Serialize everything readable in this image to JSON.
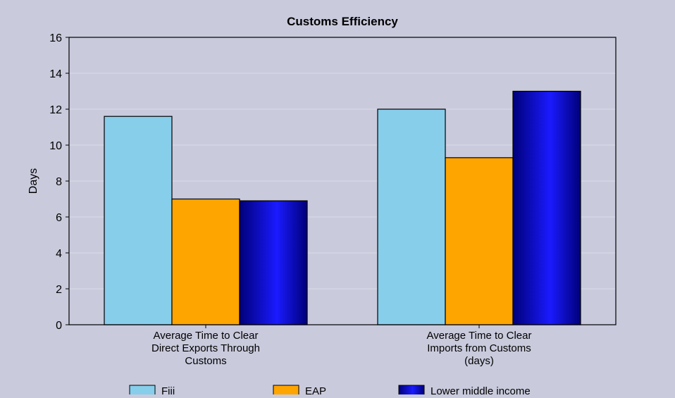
{
  "chart_data": {
    "type": "bar",
    "title": "Customs Efficiency",
    "xlabel": "",
    "ylabel": "Days",
    "ylim": [
      0,
      16
    ],
    "yticks": [
      0,
      2,
      4,
      6,
      8,
      10,
      12,
      14,
      16
    ],
    "grid": true,
    "legend_position": "bottom",
    "categories": [
      [
        "Average Time to Clear",
        "Direct Exports Through",
        "Customs"
      ],
      [
        "Average Time to Clear",
        "Imports from Customs",
        "(days)"
      ]
    ],
    "series": [
      {
        "name": "Fiji",
        "values": [
          11.6,
          12.0
        ],
        "color": "#87ceeb"
      },
      {
        "name": "EAP",
        "values": [
          7.0,
          9.3
        ],
        "color": "#ffa500"
      },
      {
        "name": "Lower middle income",
        "values": [
          6.9,
          13.0
        ],
        "color": "#0000e0"
      }
    ],
    "colors": {
      "background": "#c9cadc",
      "plot_background": "#c9cadc",
      "axis": "#000000",
      "grid": "#dcdce8"
    }
  }
}
